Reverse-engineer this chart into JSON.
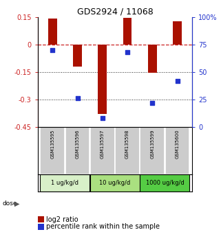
{
  "title": "GDS2924 / 11068",
  "samples": [
    "GSM135595",
    "GSM135596",
    "GSM135597",
    "GSM135598",
    "GSM135599",
    "GSM135600"
  ],
  "log2_ratio": [
    0.14,
    -0.12,
    -0.38,
    0.145,
    -0.155,
    0.125
  ],
  "percentile_rank": [
    70,
    26,
    8,
    68,
    22,
    42
  ],
  "dose_groups": [
    {
      "label": "1 ug/kg/d",
      "samples": [
        0,
        1
      ],
      "color": "#d8f0c8"
    },
    {
      "label": "10 ug/kg/d",
      "samples": [
        2,
        3
      ],
      "color": "#aae080"
    },
    {
      "label": "1000 ug/kg/d",
      "samples": [
        4,
        5
      ],
      "color": "#55cc44"
    }
  ],
  "ylim_left": [
    -0.45,
    0.15
  ],
  "ylim_right": [
    0,
    100
  ],
  "yticks_left": [
    0.15,
    0.0,
    -0.15,
    -0.3,
    -0.45
  ],
  "yticks_right": [
    100,
    75,
    50,
    25,
    0
  ],
  "bar_color": "#aa1100",
  "dot_color": "#2233cc",
  "zero_line_color": "#cc2222",
  "dotted_line_color": "#222222",
  "background_color": "#ffffff",
  "sample_box_color": "#cccccc",
  "title_fontsize": 9,
  "tick_fontsize": 7,
  "legend_fontsize": 7
}
